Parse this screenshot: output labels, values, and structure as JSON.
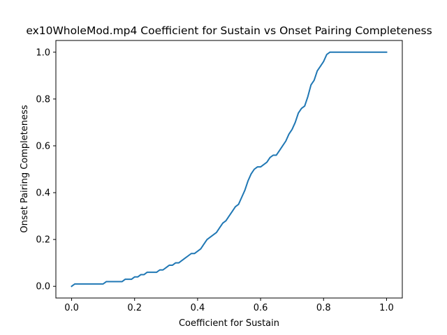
{
  "chart_data": {
    "type": "line",
    "title": "ex10WholeMod.mp4 Coefficient for Sustain vs Onset Pairing Completeness",
    "xlabel": "Coefficient for Sustain",
    "ylabel": "Onset Pairing Completeness",
    "xlim": [
      -0.05,
      1.05
    ],
    "ylim": [
      -0.05,
      1.05
    ],
    "xticks": [
      "0.0",
      "0.2",
      "0.4",
      "0.6",
      "0.8",
      "1.0"
    ],
    "yticks": [
      "0.0",
      "0.2",
      "0.4",
      "0.6",
      "0.8",
      "1.0"
    ],
    "grid": false,
    "colors": {
      "line": "#1f77b4",
      "axes": "#000000"
    },
    "series": [
      {
        "x": [
          0.0,
          0.01,
          0.02,
          0.03,
          0.04,
          0.05,
          0.06,
          0.07,
          0.08,
          0.09,
          0.1,
          0.11,
          0.12,
          0.13,
          0.14,
          0.15,
          0.16,
          0.17,
          0.18,
          0.19,
          0.2,
          0.21,
          0.22,
          0.23,
          0.24,
          0.25,
          0.26,
          0.27,
          0.28,
          0.29,
          0.3,
          0.31,
          0.32,
          0.33,
          0.34,
          0.35,
          0.36,
          0.37,
          0.38,
          0.39,
          0.4,
          0.41,
          0.42,
          0.43,
          0.44,
          0.45,
          0.46,
          0.47,
          0.48,
          0.49,
          0.5,
          0.51,
          0.52,
          0.53,
          0.54,
          0.55,
          0.56,
          0.57,
          0.58,
          0.59,
          0.6,
          0.61,
          0.62,
          0.63,
          0.64,
          0.65,
          0.66,
          0.67,
          0.68,
          0.69,
          0.7,
          0.71,
          0.72,
          0.73,
          0.74,
          0.75,
          0.76,
          0.77,
          0.78,
          0.79,
          0.8,
          0.81,
          0.82,
          0.83,
          0.84,
          0.85,
          0.86,
          0.87,
          0.88,
          0.89,
          0.9,
          0.91,
          0.92,
          0.93,
          0.94,
          0.95,
          0.96,
          0.97,
          0.98,
          0.99,
          1.0
        ],
        "y": [
          0.0,
          0.01,
          0.01,
          0.01,
          0.01,
          0.01,
          0.01,
          0.01,
          0.01,
          0.01,
          0.01,
          0.02,
          0.02,
          0.02,
          0.02,
          0.02,
          0.02,
          0.03,
          0.03,
          0.03,
          0.04,
          0.04,
          0.05,
          0.05,
          0.06,
          0.06,
          0.06,
          0.06,
          0.07,
          0.07,
          0.08,
          0.09,
          0.09,
          0.1,
          0.1,
          0.11,
          0.12,
          0.13,
          0.14,
          0.14,
          0.15,
          0.16,
          0.18,
          0.2,
          0.21,
          0.22,
          0.23,
          0.25,
          0.27,
          0.28,
          0.3,
          0.32,
          0.34,
          0.35,
          0.38,
          0.41,
          0.45,
          0.48,
          0.5,
          0.51,
          0.51,
          0.52,
          0.53,
          0.55,
          0.56,
          0.56,
          0.58,
          0.6,
          0.62,
          0.65,
          0.67,
          0.7,
          0.74,
          0.76,
          0.77,
          0.81,
          0.86,
          0.88,
          0.92,
          0.94,
          0.96,
          0.99,
          1.0,
          1.0,
          1.0,
          1.0,
          1.0,
          1.0,
          1.0,
          1.0,
          1.0,
          1.0,
          1.0,
          1.0,
          1.0,
          1.0,
          1.0,
          1.0,
          1.0,
          1.0,
          1.0
        ]
      }
    ]
  }
}
